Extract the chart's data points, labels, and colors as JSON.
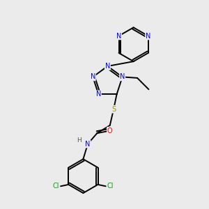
{
  "background_color": "#ebebeb",
  "figsize": [
    3.0,
    3.0
  ],
  "dpi": 100,
  "atom_colors": {
    "N": "#0000FF",
    "O": "#FF0000",
    "S": "#999900",
    "Cl": "#00AA00",
    "C": "#000000",
    "H": "#555555"
  },
  "bond_lw": 1.4,
  "font_size": 7.0,
  "xlim": [
    0,
    10
  ],
  "ylim": [
    0,
    10
  ]
}
